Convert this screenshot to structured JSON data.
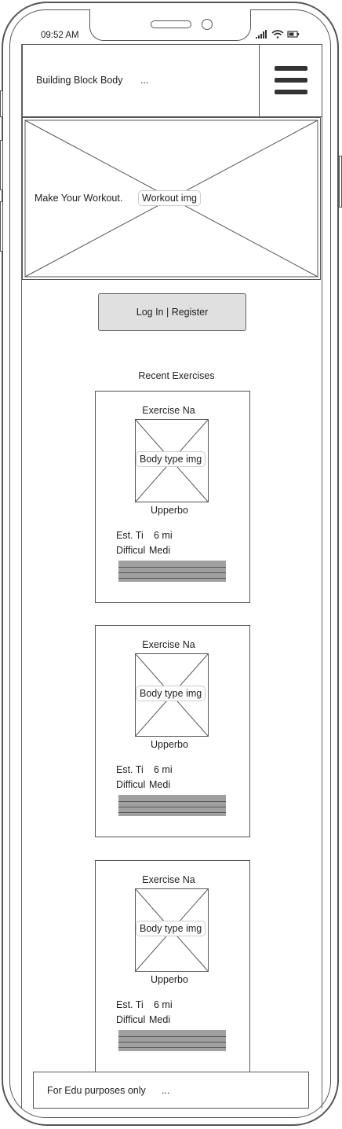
{
  "status_bar": {
    "time": "09:52 AM"
  },
  "header": {
    "title": "Building Block Body",
    "more": "...",
    "menu_icon": "hamburger-menu-icon"
  },
  "hero": {
    "text": "Make Your Workout.",
    "image_label": "Workout img"
  },
  "auth": {
    "login_register_label": "Log In | Register"
  },
  "recent": {
    "title": "Recent Exercises",
    "cards": [
      {
        "name": "Exercise Na",
        "image_label": "Body type img",
        "body_part": "Upperbo",
        "time_label": "Est. Ti",
        "time_value": "6 mi",
        "difficulty_label": "Difficul",
        "difficulty_value": "Medi"
      },
      {
        "name": "Exercise Na",
        "image_label": "Body type img",
        "body_part": "Upperbo",
        "time_label": "Est. Ti",
        "time_value": "6 mi",
        "difficulty_label": "Difficul",
        "difficulty_value": "Medi"
      },
      {
        "name": "Exercise Na",
        "image_label": "Body type img",
        "body_part": "Upperbo",
        "time_label": "Est. Ti",
        "time_value": "6 mi",
        "difficulty_label": "Difficul",
        "difficulty_value": "Medi"
      }
    ]
  },
  "footer": {
    "text": "For Edu purposes only",
    "more": "..."
  }
}
